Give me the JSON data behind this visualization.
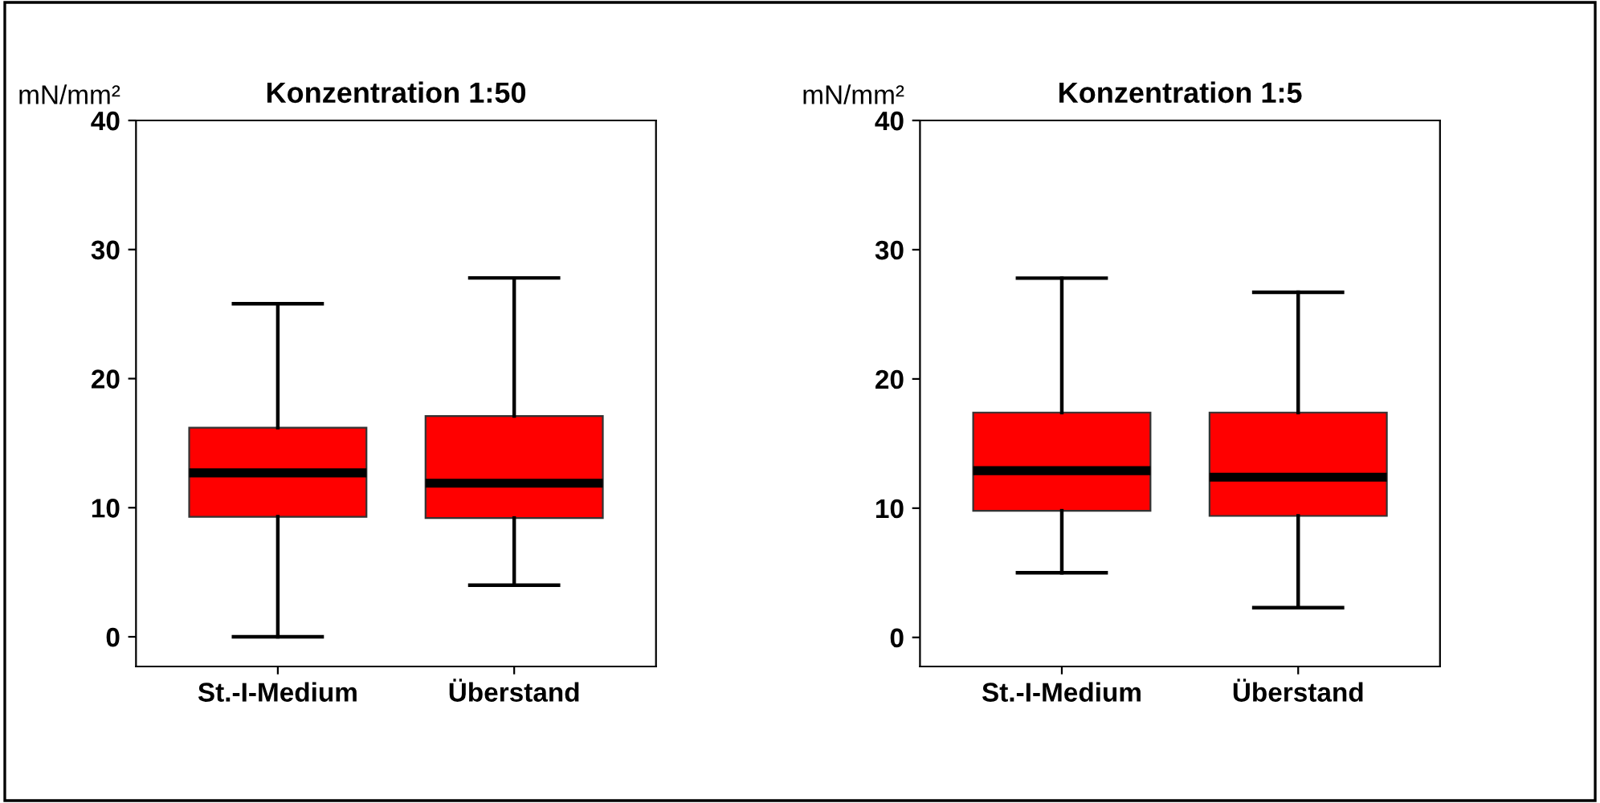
{
  "chart_data": [
    {
      "type": "box",
      "title": "Konzentration 1:50",
      "ylabel": "mN/mm²",
      "categories": [
        "St.-I-Medium",
        "Überstand"
      ],
      "ylim": [
        -2.3,
        40
      ],
      "yticks": [
        0,
        10,
        20,
        30,
        40
      ],
      "grid": false,
      "legend": false,
      "color": "#ff0000",
      "boxes": [
        {
          "low": 0,
          "q1": 9.3,
          "median": 12.7,
          "q3": 16.2,
          "high": 25.8
        },
        {
          "low": 4.0,
          "q1": 9.2,
          "median": 11.9,
          "q3": 17.1,
          "high": 27.8
        }
      ]
    },
    {
      "type": "box",
      "title": "Konzentration 1:5",
      "ylabel": "mN/mm²",
      "categories": [
        "St.-I-Medium",
        "Überstand"
      ],
      "ylim": [
        -2.25,
        40
      ],
      "yticks": [
        0,
        10,
        20,
        30,
        40
      ],
      "grid": false,
      "legend": false,
      "color": "#ff0000",
      "boxes": [
        {
          "low": 5.0,
          "q1": 9.8,
          "median": 12.9,
          "q3": 17.4,
          "high": 27.8
        },
        {
          "low": 2.3,
          "q1": 9.4,
          "median": 12.4,
          "q3": 17.4,
          "high": 26.7
        }
      ]
    }
  ]
}
